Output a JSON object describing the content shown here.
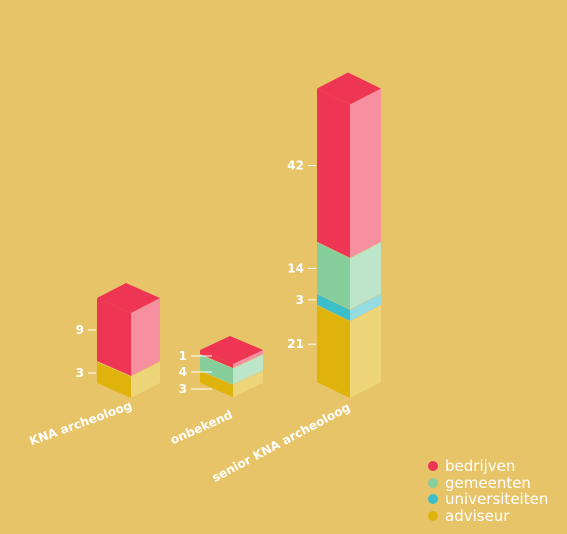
{
  "chart_data": {
    "type": "bar",
    "stacked": true,
    "style": "isometric-3d",
    "categories": [
      "KNA archeoloog",
      "onbekend",
      "senior KNA archeoloog"
    ],
    "series": [
      {
        "name": "adviseur",
        "color": "#e0b30c",
        "values": [
          3,
          3,
          21
        ]
      },
      {
        "name": "universiteiten",
        "color": "#3cbfc9",
        "values": [
          0,
          0,
          3
        ]
      },
      {
        "name": "gemeenten",
        "color": "#86cf9c",
        "values": [
          0,
          4,
          14
        ]
      },
      {
        "name": "bedrijven",
        "color": "#ee3553",
        "values": [
          9,
          1,
          42
        ]
      }
    ],
    "legend_position": "bottom-right",
    "colors": {
      "background": "#e8c468",
      "text": "#ffffff"
    }
  }
}
